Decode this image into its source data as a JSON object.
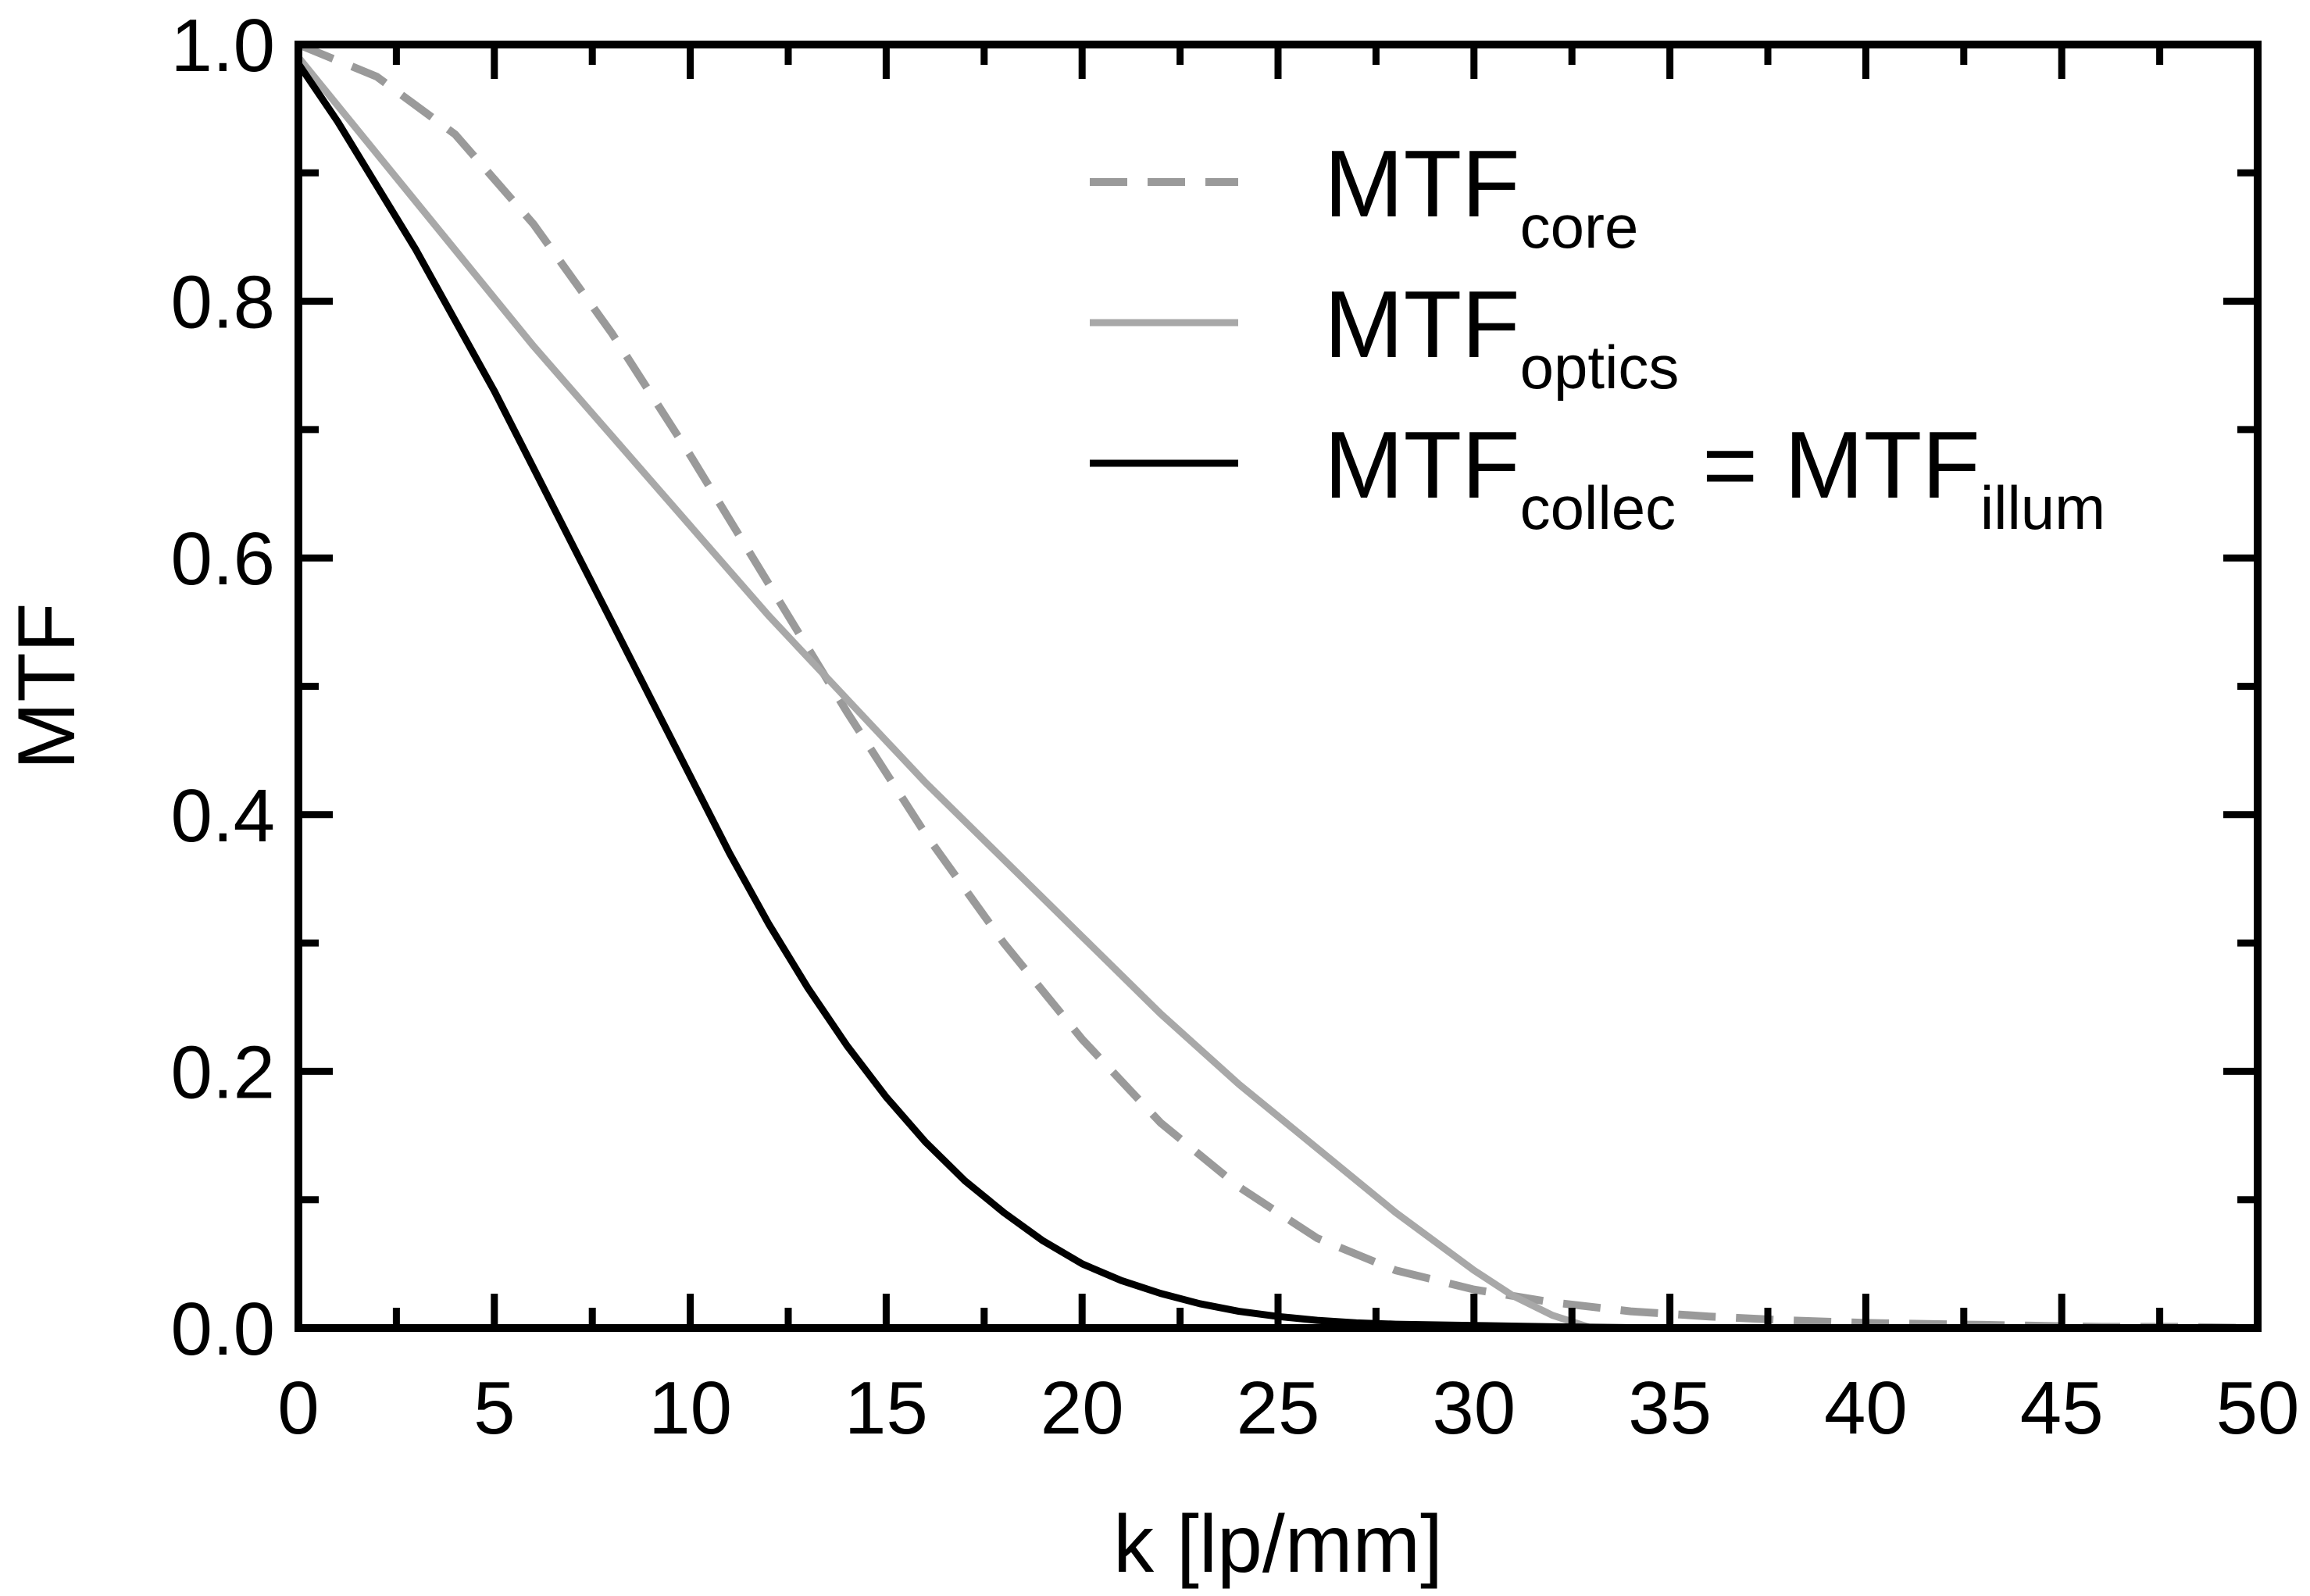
{
  "chart_data": {
    "type": "line",
    "title": "",
    "xlabel": "k [lp/mm]",
    "ylabel": "MTF",
    "xlim": [
      0,
      50
    ],
    "ylim": [
      0,
      1.0
    ],
    "x_ticks": [
      "0",
      "5",
      "10",
      "15",
      "20",
      "25",
      "30",
      "35",
      "40",
      "45",
      "50"
    ],
    "y_ticks": [
      "0.0",
      "0.2",
      "0.4",
      "0.6",
      "0.8",
      "1.0"
    ],
    "x_tick_values": [
      0,
      5,
      10,
      15,
      20,
      25,
      30,
      35,
      40,
      45,
      50
    ],
    "y_tick_values": [
      0,
      0.2,
      0.4,
      0.6,
      0.8,
      1.0
    ],
    "grid": false,
    "legend_position": "top-right",
    "legend": [
      {
        "main": "MTF",
        "sub": "core",
        "main2": "",
        "sub2": ""
      },
      {
        "main": "MTF",
        "sub": "optics",
        "main2": "",
        "sub2": ""
      },
      {
        "main": "MTF",
        "sub": "collec",
        "main2": " = MTF",
        "sub2": "illum"
      }
    ],
    "series": [
      {
        "style": "dashed",
        "color": "#9a9a9a",
        "x": [
          0,
          2,
          4,
          6,
          8,
          10,
          12,
          14,
          16,
          18,
          20,
          22,
          24,
          26,
          28,
          30,
          32,
          34,
          36,
          38,
          40,
          42,
          44,
          46,
          48,
          50
        ],
        "y": [
          1.0,
          0.975,
          0.93,
          0.86,
          0.775,
          0.68,
          0.58,
          0.48,
          0.385,
          0.3,
          0.225,
          0.16,
          0.11,
          0.07,
          0.045,
          0.03,
          0.02,
          0.013,
          0.009,
          0.006,
          0.004,
          0.003,
          0.002,
          0.001,
          0.001,
          0.0
        ]
      },
      {
        "style": "solid",
        "color": "#a8a8a8",
        "x": [
          0,
          2,
          4,
          6,
          8,
          10,
          12,
          14,
          16,
          18,
          20,
          22,
          24,
          26,
          28,
          30,
          31,
          32,
          33,
          35,
          40,
          45,
          50
        ],
        "y": [
          0.99,
          0.915,
          0.84,
          0.765,
          0.695,
          0.625,
          0.555,
          0.49,
          0.425,
          0.365,
          0.305,
          0.245,
          0.19,
          0.14,
          0.09,
          0.045,
          0.025,
          0.01,
          0.0,
          0.0,
          0.0,
          0.0,
          0.0
        ]
      },
      {
        "style": "solid",
        "color": "#000000",
        "x": [
          0,
          1,
          2,
          3,
          4,
          5,
          6,
          7,
          8,
          9,
          10,
          11,
          12,
          13,
          14,
          15,
          16,
          17,
          18,
          19,
          20,
          21,
          22,
          23,
          24,
          25,
          26,
          27,
          28,
          30,
          32,
          35,
          40,
          45,
          50
        ],
        "y": [
          0.985,
          0.94,
          0.89,
          0.84,
          0.785,
          0.73,
          0.67,
          0.61,
          0.55,
          0.49,
          0.43,
          0.37,
          0.315,
          0.265,
          0.22,
          0.18,
          0.145,
          0.115,
          0.09,
          0.068,
          0.05,
          0.037,
          0.027,
          0.019,
          0.013,
          0.009,
          0.006,
          0.004,
          0.003,
          0.002,
          0.001,
          0.0,
          0.0,
          0.0,
          0.0
        ]
      }
    ]
  }
}
